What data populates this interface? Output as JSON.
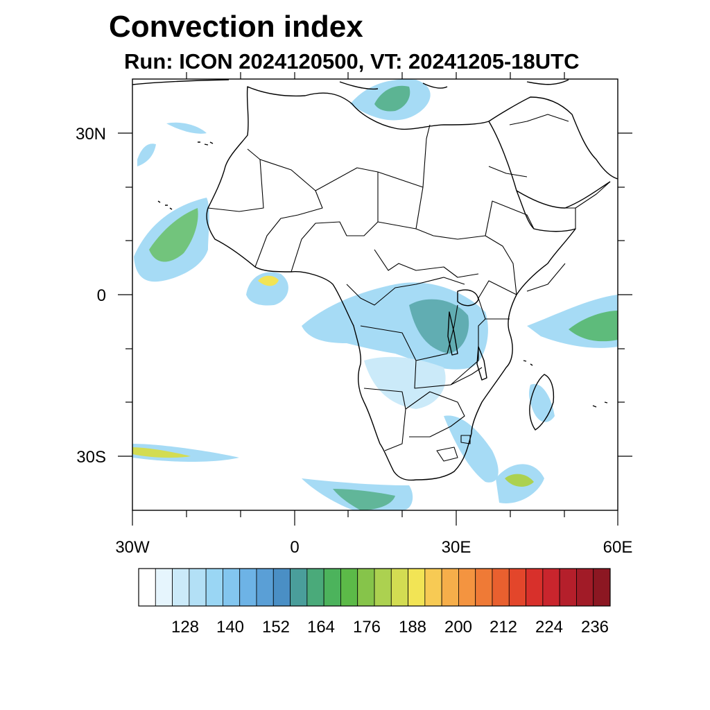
{
  "title": "Convection index",
  "subtitle": "Run: ICON 2024120500,  VT: 20241205-18UTC",
  "map": {
    "region": "Africa",
    "lon_range": [
      -30,
      60
    ],
    "lat_range": [
      -40,
      40
    ],
    "x_tick_labels": [
      "30W",
      "0",
      "30E",
      "60E"
    ],
    "y_tick_labels": [
      "30N",
      "0",
      "30S"
    ]
  },
  "colorbar": {
    "colors": [
      "#ffffff",
      "#e6f5fd",
      "#cbeaf9",
      "#b3e0f6",
      "#9ad6f4",
      "#83c6ef",
      "#6db3e6",
      "#5a9fd6",
      "#4a8fc5",
      "#4a9e9b",
      "#4aaa7a",
      "#4cb35c",
      "#5cba48",
      "#86c44a",
      "#acd150",
      "#d3dc52",
      "#f2e455",
      "#f7ca54",
      "#f6ae4a",
      "#f49440",
      "#ef7a36",
      "#e9602f",
      "#e3462b",
      "#d8302b",
      "#c9252d",
      "#b51f2b",
      "#a11b27",
      "#8c1722"
    ],
    "labels": [
      "128",
      "140",
      "152",
      "164",
      "176",
      "188",
      "200",
      "212",
      "224",
      "236"
    ]
  }
}
